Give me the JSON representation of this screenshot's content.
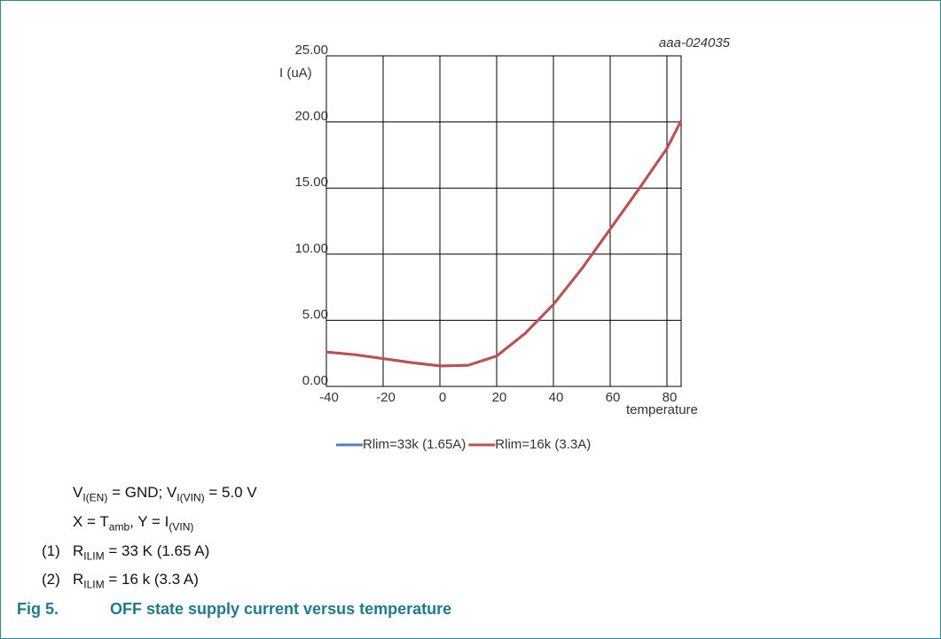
{
  "chart_data": {
    "type": "line",
    "annotation": "aaa-024035",
    "y_label": "I (uA)",
    "x_label": "temperature",
    "x": [
      -40,
      -30,
      -20,
      -10,
      0,
      10,
      20,
      30,
      40,
      50,
      60,
      70,
      80,
      85
    ],
    "series": [
      {
        "name": "Rlim=33k (1.65A)",
        "color": "#4f81bd",
        "values": [
          2.6,
          2.4,
          2.1,
          1.8,
          1.55,
          1.6,
          2.3,
          4.0,
          6.2,
          8.9,
          11.9,
          14.9,
          18.0,
          20.1
        ]
      },
      {
        "name": "Rlim=16k (3.3A)",
        "color": "#c0504d",
        "values": [
          2.6,
          2.4,
          2.1,
          1.8,
          1.55,
          1.6,
          2.3,
          4.0,
          6.2,
          8.9,
          11.9,
          14.9,
          18.0,
          20.1
        ]
      }
    ],
    "xlim": [
      -40,
      85
    ],
    "xticks": [
      -40,
      -20,
      0,
      20,
      40,
      60,
      80
    ],
    "ylim": [
      0,
      25
    ],
    "yticks": [
      {
        "value": 0,
        "label": "0.00"
      },
      {
        "value": 5,
        "label": "5.00"
      },
      {
        "value": 10,
        "label": "10.00"
      },
      {
        "value": 15,
        "label": "15.00"
      },
      {
        "value": 20,
        "label": "20.00"
      },
      {
        "value": 25,
        "label": "25.00"
      }
    ],
    "grid": true,
    "legend": "bottom"
  },
  "conditions": [
    [
      "V",
      "I(EN)",
      " = GND; V",
      "I(VIN)",
      " = 5.0 V"
    ],
    [
      "X = T",
      "amb",
      ", Y = I",
      "(VIN)"
    ]
  ],
  "notes": [
    {
      "number": "(1)",
      "text": [
        "R",
        "ILIM",
        " = 33 K (1.65 A)"
      ]
    },
    {
      "number": "(2)",
      "text": [
        "R",
        "ILIM",
        " = 16 k (3.3 A)"
      ]
    }
  ],
  "caption": {
    "label": "Fig 5.",
    "title": "OFF state supply current versus temperature"
  }
}
